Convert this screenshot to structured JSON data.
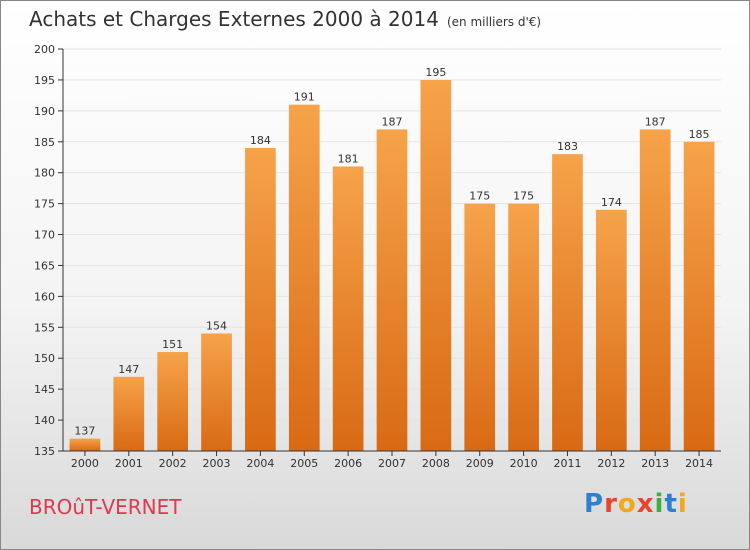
{
  "title": "Achats et Charges Externes 2000 à 2014",
  "unit": "(en milliers d'€)",
  "town": "BROûT-VERNET",
  "logo": {
    "text": "Proxiti",
    "letter_colors": [
      "#2e7fd1",
      "#e8442e",
      "#f3a81b",
      "#e8442e",
      "#3fae3f",
      "#2e7fd1",
      "#f3a81b"
    ]
  },
  "colors": {
    "bar_top": "#f6a34a",
    "bar_bottom": "#d96a14",
    "grid": "#e4e4e4",
    "axis": "#333333"
  },
  "chart_data": {
    "type": "bar",
    "categories": [
      "2000",
      "2001",
      "2002",
      "2003",
      "2004",
      "2005",
      "2006",
      "2007",
      "2008",
      "2009",
      "2010",
      "2011",
      "2012",
      "2013",
      "2014"
    ],
    "values": [
      137,
      147,
      151,
      154,
      184,
      191,
      181,
      187,
      195,
      175,
      175,
      183,
      174,
      187,
      185
    ],
    "title": "Achats et Charges Externes 2000 à 2014",
    "subtitle": "(en milliers d'€)",
    "ylim": [
      135,
      200
    ],
    "yticks": [
      135,
      140,
      145,
      150,
      155,
      160,
      165,
      170,
      175,
      180,
      185,
      190,
      195,
      200
    ],
    "grid": true,
    "legend": "none"
  }
}
